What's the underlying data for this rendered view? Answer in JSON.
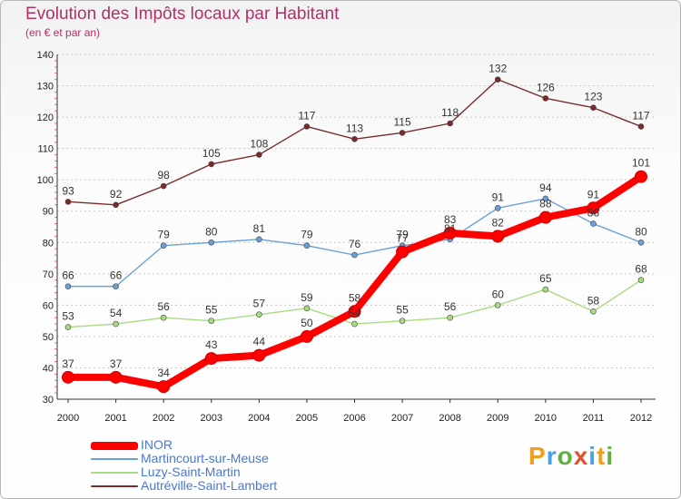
{
  "chart_data": {
    "type": "line",
    "title": "Evolution des Impôts locaux par Habitant",
    "subtitle": "(en € et par an)",
    "x": [
      "2000",
      "2001",
      "2002",
      "2003",
      "2004",
      "2005",
      "2006",
      "2007",
      "2008",
      "2009",
      "2010",
      "2011",
      "2012"
    ],
    "ylim": [
      30,
      140
    ],
    "yticks": [
      "30",
      "40",
      "50",
      "60",
      "70",
      "80",
      "90",
      "100",
      "110",
      "120",
      "130",
      "140"
    ],
    "grid": "horizontal dashed",
    "legend_position": "bottom-left",
    "series": [
      {
        "name": "INOR",
        "color": "#ff0000",
        "highlight": true,
        "values": [
          37,
          37,
          34,
          43,
          44,
          50,
          58,
          77,
          83,
          82,
          88,
          91,
          101
        ]
      },
      {
        "name": "Martincourt-sur-Meuse",
        "color": "#6aa0d8",
        "values": [
          66,
          66,
          79,
          80,
          81,
          79,
          76,
          79,
          81,
          91,
          94,
          86,
          80
        ]
      },
      {
        "name": "Luzy-Saint-Martin",
        "color": "#a8dc80",
        "values": [
          53,
          54,
          56,
          55,
          57,
          59,
          54,
          55,
          56,
          60,
          65,
          58,
          68
        ]
      },
      {
        "name": "Autréville-Saint-Lambert",
        "color": "#7a2a2a",
        "values": [
          93,
          92,
          98,
          105,
          108,
          117,
          113,
          115,
          118,
          132,
          126,
          123,
          117
        ]
      }
    ]
  },
  "logo": {
    "letters": [
      "P",
      "r",
      "o",
      "x",
      "i",
      "t",
      "i"
    ],
    "colors": [
      "#f0a020",
      "#4aa0e0",
      "#60b040",
      "#e05030",
      "#4aa0e0",
      "#f0a020",
      "#60b040"
    ]
  }
}
